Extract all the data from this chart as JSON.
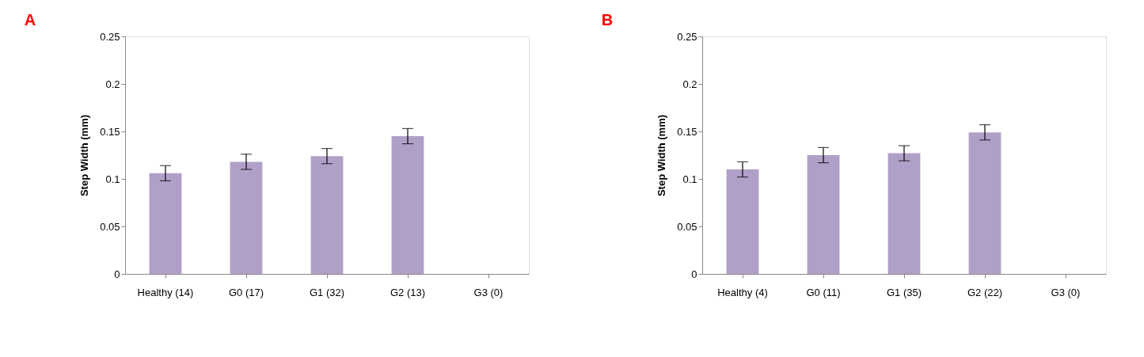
{
  "chart_data": [
    {
      "type": "bar",
      "title": "A",
      "ylabel": "Step Width (mm)",
      "categories": [
        "Healthy (14)",
        "G0 (17)",
        "G1 (32)",
        "G2 (13)",
        "G3 (0)"
      ],
      "values": [
        0.106,
        0.118,
        0.124,
        0.145,
        null
      ],
      "errors": [
        0.008,
        0.008,
        0.008,
        0.008,
        null
      ],
      "color": "#b0a0c8",
      "ylim": [
        0,
        0.25
      ],
      "yticks": [
        0,
        0.05,
        0.1,
        0.15,
        0.2,
        0.25
      ],
      "grid": false
    },
    {
      "type": "bar",
      "title": "B",
      "ylabel": "Step Width (mm)",
      "categories": [
        "Healthy (4)",
        "G0 (11)",
        "G1 (35)",
        "G2 (22)",
        "G3 (0)"
      ],
      "values": [
        0.11,
        0.125,
        0.127,
        0.149,
        null
      ],
      "errors": [
        0.008,
        0.008,
        0.008,
        0.008,
        null
      ],
      "color": "#b0a0c8",
      "ylim": [
        0,
        0.25
      ],
      "yticks": [
        0,
        0.05,
        0.1,
        0.15,
        0.2,
        0.25
      ],
      "grid": false
    }
  ]
}
